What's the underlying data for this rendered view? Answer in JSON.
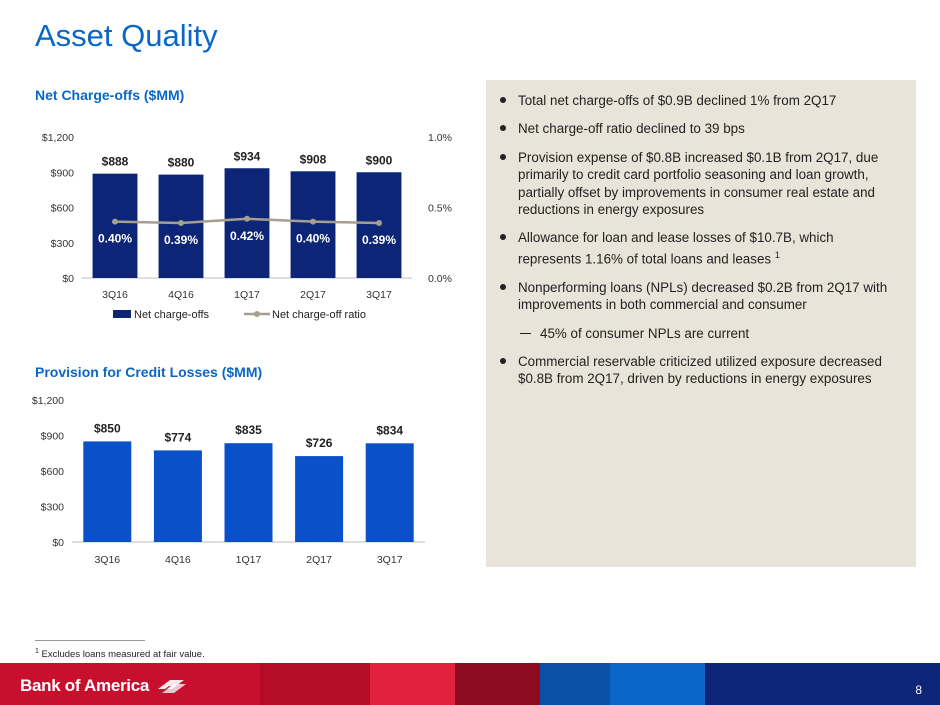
{
  "page": {
    "title": "Asset Quality",
    "page_number": "8",
    "footnote_marker": "1",
    "footnote_text": "Excludes loans measured at fair value."
  },
  "brand": {
    "name": "Bank of America",
    "colors": {
      "title_blue": "#0a67c8",
      "navy": "#0c2577",
      "bar_blue": "#0a50c8",
      "red": "#c8102e",
      "panel": "#e8e4da",
      "ratio_line": "#a59e91"
    }
  },
  "chart_data": [
    {
      "type": "bar",
      "title": "Net Charge-offs ($MM)",
      "categories": [
        "3Q16",
        "4Q16",
        "1Q17",
        "2Q17",
        "3Q17"
      ],
      "series": [
        {
          "name": "Net charge-offs",
          "values": [
            888,
            880,
            934,
            908,
            900
          ],
          "labels": [
            "$888",
            "$880",
            "$934",
            "$908",
            "$900"
          ],
          "color": "#0c2577",
          "axis": "left"
        },
        {
          "name": "Net charge-off ratio",
          "type": "line",
          "values": [
            0.4,
            0.39,
            0.42,
            0.4,
            0.39
          ],
          "labels": [
            "0.40%",
            "0.39%",
            "0.42%",
            "0.40%",
            "0.39%"
          ],
          "color": "#a59e91",
          "axis": "right"
        }
      ],
      "y_ticks": [
        "$0",
        "$300",
        "$600",
        "$900",
        "$1,200"
      ],
      "ylim": [
        0,
        1200
      ],
      "y2_ticks": [
        "0.0%",
        "0.5%",
        "1.0%"
      ],
      "y2lim": [
        0,
        1.0
      ],
      "legend": "bottom"
    },
    {
      "type": "bar",
      "title": "Provision for Credit Losses ($MM)",
      "categories": [
        "3Q16",
        "4Q16",
        "1Q17",
        "2Q17",
        "3Q17"
      ],
      "values": [
        850,
        774,
        835,
        726,
        834
      ],
      "labels": [
        "$850",
        "$774",
        "$835",
        "$726",
        "$834"
      ],
      "color": "#0a50c8",
      "y_ticks": [
        "$0",
        "$300",
        "$600",
        "$900",
        "$1,200"
      ],
      "ylim": [
        0,
        1200
      ]
    }
  ],
  "bullets": [
    {
      "level": 1,
      "text": "Total net charge-offs of $0.9B declined 1% from 2Q17"
    },
    {
      "level": 1,
      "text": "Net charge-off ratio declined to 39 bps"
    },
    {
      "level": 1,
      "text": "Provision expense of $0.8B increased $0.1B from 2Q17, due primarily to credit card portfolio seasoning and loan growth, partially offset by improvements in consumer real estate and reductions in energy exposures"
    },
    {
      "level": 1,
      "text": "Allowance for loan and lease losses of $10.7B, which represents 1.16% of total loans and leases",
      "sup": "1"
    },
    {
      "level": 1,
      "text": "Nonperforming loans (NPLs) decreased $0.2B from 2Q17 with improvements in both commercial and consumer"
    },
    {
      "level": 2,
      "text": "45% of consumer NPLs are current"
    },
    {
      "level": 1,
      "text": "Commercial reservable criticized utilized exposure decreased $0.8B from 2Q17, driven by reductions in energy exposures"
    }
  ]
}
